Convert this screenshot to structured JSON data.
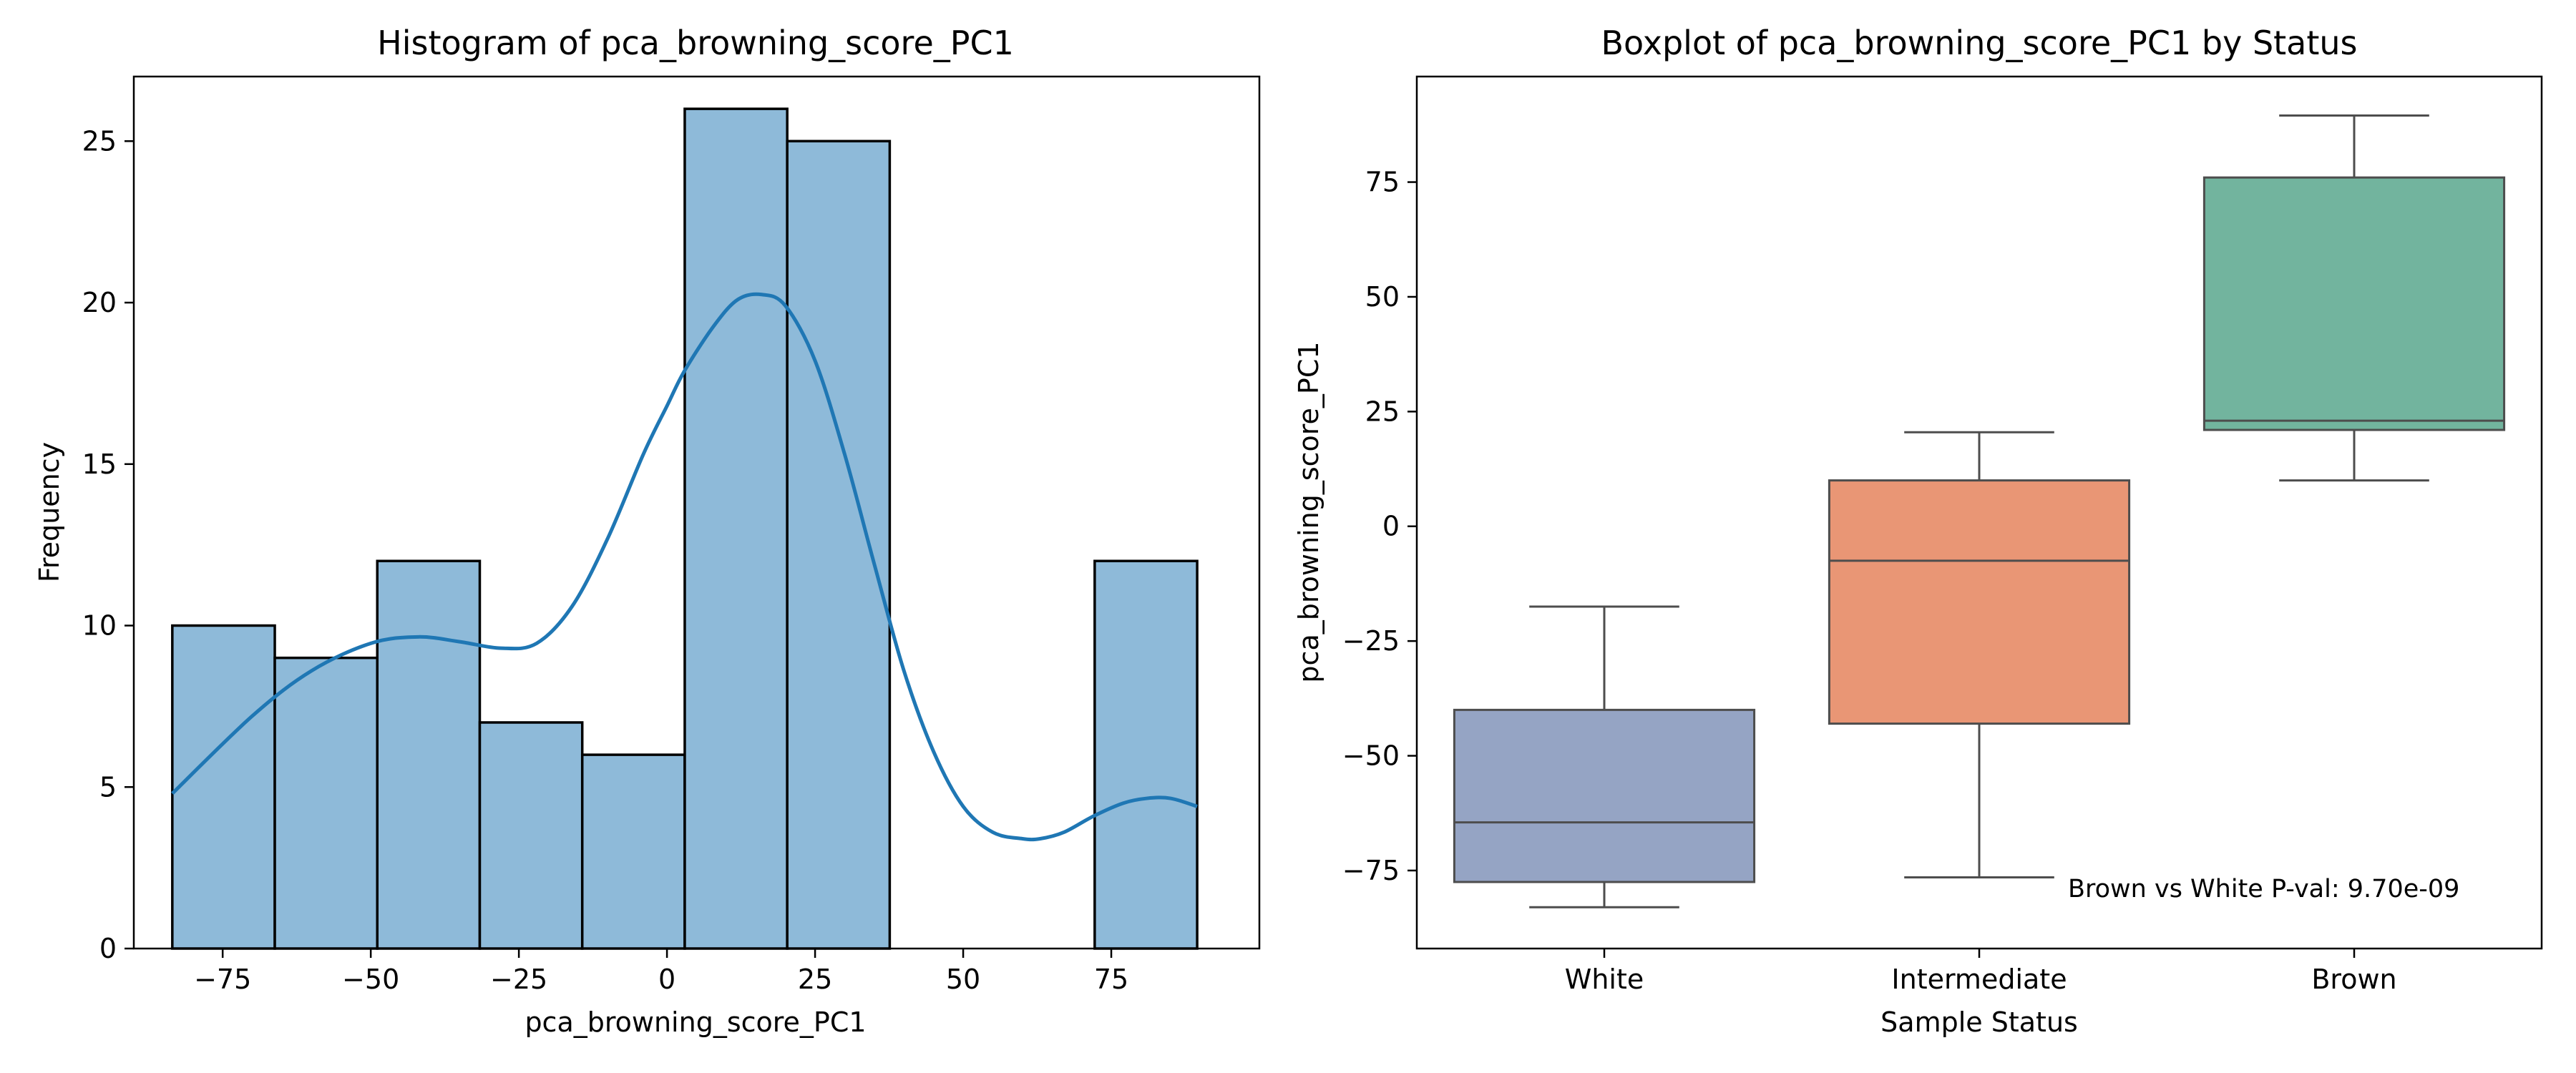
{
  "chart_data": [
    {
      "type": "histogram",
      "title": "Histogram of pca_browning_score_PC1",
      "xlabel": "pca_browning_score_PC1",
      "ylabel": "Frequency",
      "xlim": [
        -90,
        100
      ],
      "ylim": [
        0,
        27
      ],
      "xticks": [
        -75,
        -50,
        -25,
        0,
        25,
        50,
        75
      ],
      "xtick_labels": [
        "−75",
        "−50",
        "−25",
        "0",
        "25",
        "50",
        "75"
      ],
      "yticks": [
        0,
        5,
        10,
        15,
        20,
        25
      ],
      "ytick_labels": [
        "0",
        "5",
        "10",
        "15",
        "20",
        "25"
      ],
      "bins": [
        {
          "x0": -83.5,
          "x1": -66.2,
          "count": 10
        },
        {
          "x0": -66.2,
          "x1": -48.9,
          "count": 9
        },
        {
          "x0": -48.9,
          "x1": -31.6,
          "count": 12
        },
        {
          "x0": -31.6,
          "x1": -14.3,
          "count": 7
        },
        {
          "x0": -14.3,
          "x1": 3.0,
          "count": 6
        },
        {
          "x0": 3.0,
          "x1": 20.3,
          "count": 26
        },
        {
          "x0": 20.3,
          "x1": 37.6,
          "count": 25
        },
        {
          "x0": 37.6,
          "x1": 54.9,
          "count": 0
        },
        {
          "x0": 54.9,
          "x1": 72.2,
          "count": 0
        },
        {
          "x0": 72.2,
          "x1": 89.5,
          "count": 12
        }
      ],
      "kde": {
        "x": [
          -83.5,
          -70,
          -60,
          -50,
          -42,
          -35,
          -28,
          -22,
          -16,
          -10,
          -4,
          0,
          3,
          8,
          12,
          16,
          20,
          25,
          30,
          35,
          40,
          45,
          50,
          55,
          60,
          63,
          67,
          72,
          77,
          81,
          85,
          89.5
        ],
        "y": [
          4.8,
          7.2,
          8.6,
          9.45,
          9.65,
          9.5,
          9.3,
          9.45,
          10.6,
          12.7,
          15.3,
          16.8,
          17.9,
          19.3,
          20.1,
          20.25,
          19.9,
          18.2,
          15.3,
          11.9,
          8.6,
          6.1,
          4.4,
          3.6,
          3.4,
          3.4,
          3.6,
          4.1,
          4.5,
          4.65,
          4.65,
          4.4
        ]
      },
      "color": "#8ebad9",
      "edge_color": "#000000",
      "kde_color": "#1f77b4"
    },
    {
      "type": "boxplot",
      "title": "Boxplot of pca_browning_score_PC1 by Status",
      "xlabel": "Sample Status",
      "ylabel": "pca_browning_score_PC1",
      "ylim": [
        -92,
        98
      ],
      "yticks": [
        -75,
        -50,
        -25,
        0,
        25,
        50,
        75
      ],
      "ytick_labels": [
        "−75",
        "−50",
        "−25",
        "0",
        "25",
        "50",
        "75"
      ],
      "categories": [
        "White",
        "Intermediate",
        "Brown"
      ],
      "boxes": [
        {
          "category": "White",
          "whislo": -83,
          "q1": -77.5,
          "med": -64.5,
          "q3": -40,
          "whishi": -17.5,
          "color": "#95a4c4"
        },
        {
          "category": "Intermediate",
          "whislo": -76.5,
          "q1": -43,
          "med": -7.5,
          "q3": 10,
          "whishi": 20.5,
          "color": "#e99675"
        },
        {
          "category": "Brown",
          "whislo": 10,
          "q1": 21,
          "med": 23,
          "q3": 76,
          "whishi": 89.5,
          "color": "#72b49e"
        }
      ],
      "annotation": "Brown vs White P-val: 9.70e-09"
    }
  ]
}
